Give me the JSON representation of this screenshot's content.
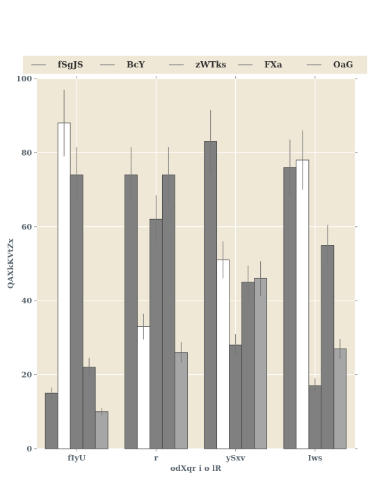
{
  "chart_data": {
    "type": "bar",
    "title": "",
    "xlabel": "odXqr i o lR",
    "ylabel": "QAXkKVtZx",
    "ylim": [
      0,
      100
    ],
    "yticks": [
      0,
      20,
      40,
      60,
      80,
      100
    ],
    "grid": true,
    "legend_position": "top",
    "categories": [
      "fIyU",
      "r",
      "ySxv",
      "Iws"
    ],
    "series": [
      {
        "name": "fSgJS",
        "color": "#808080",
        "values": [
          15,
          74,
          83,
          76
        ],
        "errors": [
          1.5,
          7.5,
          8.5,
          7.5
        ]
      },
      {
        "name": "BcY",
        "color": "#ffffff",
        "values": [
          88,
          33,
          51,
          78
        ],
        "errors": [
          9,
          3.5,
          5,
          8
        ]
      },
      {
        "name": "zWTks",
        "color": "#808080",
        "values": [
          74,
          62,
          28,
          17
        ],
        "errors": [
          7.5,
          6.5,
          3,
          2
        ]
      },
      {
        "name": "FXa",
        "color": "#808080",
        "values": [
          22,
          74,
          45,
          55
        ],
        "errors": [
          2.5,
          7.5,
          4.5,
          5.5
        ]
      },
      {
        "name": "OaG",
        "color": "#a6a6a6",
        "values": [
          10,
          26,
          46,
          27
        ],
        "errors": [
          1,
          2.8,
          4.7,
          2.7
        ]
      }
    ],
    "colors": {
      "plot_background": "#efe8d6",
      "legend_background": "#efe8d6",
      "grid": "#ffffff",
      "bar_edge": "#444444",
      "error_bar": "#777777",
      "legend_line": "#999999"
    }
  }
}
